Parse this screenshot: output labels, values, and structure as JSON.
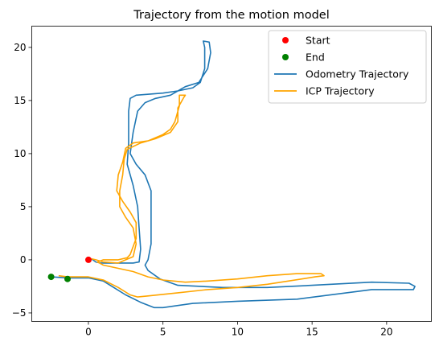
{
  "chart_data": {
    "type": "line",
    "title": "Trajectory from the motion model",
    "xlabel": "",
    "ylabel": "",
    "xlim": [
      -3.8,
      23.0
    ],
    "ylim": [
      -5.8,
      22.0
    ],
    "x_ticks": [
      0,
      5,
      10,
      15,
      20
    ],
    "y_ticks": [
      -5,
      0,
      5,
      10,
      15,
      20
    ],
    "grid": false,
    "legend_position": "top-right",
    "markers": [
      {
        "name": "Start",
        "color": "#ff0000",
        "points": [
          [
            0,
            0
          ]
        ]
      },
      {
        "name": "End",
        "color": "#008000",
        "points": [
          [
            -2.5,
            -1.6
          ],
          [
            -1.4,
            -1.8
          ]
        ]
      }
    ],
    "series": [
      {
        "name": "Odometry Trajectory",
        "color": "#1f77b4",
        "points": [
          [
            0.2,
            0.1
          ],
          [
            0.5,
            -0.2
          ],
          [
            0.8,
            -0.3
          ],
          [
            2.0,
            -0.3
          ],
          [
            3.0,
            -0.3
          ],
          [
            3.4,
            -0.2
          ],
          [
            3.5,
            1.0
          ],
          [
            3.4,
            3.0
          ],
          [
            3.3,
            5.0
          ],
          [
            3.0,
            7.0
          ],
          [
            2.6,
            9.0
          ],
          [
            2.7,
            11.0
          ],
          [
            2.7,
            12.5
          ],
          [
            2.7,
            14.0
          ],
          [
            2.8,
            15.2
          ],
          [
            3.2,
            15.5
          ],
          [
            5.0,
            15.7
          ],
          [
            6.0,
            15.9
          ],
          [
            7.0,
            16.2
          ],
          [
            7.5,
            16.7
          ],
          [
            7.8,
            18.0
          ],
          [
            7.8,
            20.0
          ],
          [
            7.7,
            20.6
          ],
          [
            8.1,
            20.5
          ],
          [
            8.2,
            19.5
          ],
          [
            8.0,
            18.0
          ],
          [
            7.4,
            16.7
          ],
          [
            6.5,
            16.3
          ],
          [
            5.5,
            15.5
          ],
          [
            4.5,
            15.2
          ],
          [
            3.8,
            14.8
          ],
          [
            3.3,
            14.0
          ],
          [
            3.0,
            12.0
          ],
          [
            2.8,
            10.0
          ],
          [
            3.2,
            9.0
          ],
          [
            3.8,
            8.0
          ],
          [
            4.2,
            6.5
          ],
          [
            4.2,
            4.0
          ],
          [
            4.2,
            1.5
          ],
          [
            4.0,
            0.0
          ],
          [
            3.8,
            -0.5
          ],
          [
            4.0,
            -1.0
          ],
          [
            4.8,
            -1.8
          ],
          [
            6.0,
            -2.4
          ],
          [
            9.0,
            -2.6
          ],
          [
            12.0,
            -2.6
          ],
          [
            15.0,
            -2.4
          ],
          [
            19.0,
            -2.1
          ],
          [
            21.5,
            -2.2
          ],
          [
            21.9,
            -2.5
          ],
          [
            21.8,
            -2.8
          ],
          [
            19.0,
            -2.8
          ],
          [
            14.0,
            -3.7
          ],
          [
            10.0,
            -3.9
          ],
          [
            7.0,
            -4.1
          ],
          [
            5.0,
            -4.5
          ],
          [
            4.4,
            -4.5
          ],
          [
            3.5,
            -4.0
          ],
          [
            2.5,
            -3.3
          ],
          [
            1.7,
            -2.6
          ],
          [
            1.0,
            -2.0
          ],
          [
            0.0,
            -1.7
          ],
          [
            -1.4,
            -1.7
          ],
          [
            -2.5,
            -1.6
          ]
        ]
      },
      {
        "name": "ICP Trajectory",
        "color": "#ffa500",
        "points": [
          [
            0.2,
            0.1
          ],
          [
            0.5,
            0.0
          ],
          [
            1.0,
            -0.2
          ],
          [
            2.0,
            -0.3
          ],
          [
            2.5,
            0.0
          ],
          [
            3.0,
            0.3
          ],
          [
            3.2,
            1.5
          ],
          [
            3.0,
            3.0
          ],
          [
            2.5,
            4.0
          ],
          [
            2.1,
            5.0
          ],
          [
            2.1,
            6.5
          ],
          [
            2.3,
            8.0
          ],
          [
            2.4,
            9.5
          ],
          [
            2.6,
            10.4
          ],
          [
            3.5,
            11.0
          ],
          [
            4.5,
            11.4
          ],
          [
            5.5,
            12.0
          ],
          [
            6.0,
            13.0
          ],
          [
            6.0,
            14.3
          ],
          [
            6.4,
            15.3
          ],
          [
            6.5,
            15.5
          ],
          [
            6.1,
            15.5
          ],
          [
            6.1,
            14.5
          ],
          [
            5.8,
            13.0
          ],
          [
            5.5,
            12.3
          ],
          [
            5.0,
            11.8
          ],
          [
            4.0,
            11.2
          ],
          [
            3.0,
            11.0
          ],
          [
            2.5,
            10.5
          ],
          [
            2.3,
            9.2
          ],
          [
            2.0,
            8.0
          ],
          [
            1.9,
            6.5
          ],
          [
            2.3,
            5.5
          ],
          [
            2.8,
            4.5
          ],
          [
            3.2,
            3.5
          ],
          [
            3.2,
            2.0
          ],
          [
            2.8,
            0.5
          ],
          [
            2.6,
            0.2
          ],
          [
            2.0,
            0.0
          ],
          [
            1.0,
            0.0
          ],
          [
            0.6,
            -0.2
          ],
          [
            1.0,
            -0.5
          ],
          [
            2.0,
            -0.8
          ],
          [
            3.0,
            -1.1
          ],
          [
            4.0,
            -1.6
          ],
          [
            5.0,
            -1.9
          ],
          [
            6.5,
            -2.1
          ],
          [
            8.0,
            -2.0
          ],
          [
            10.0,
            -1.8
          ],
          [
            12.0,
            -1.5
          ],
          [
            14.0,
            -1.3
          ],
          [
            15.6,
            -1.3
          ],
          [
            15.8,
            -1.5
          ],
          [
            15.2,
            -1.6
          ],
          [
            12.0,
            -2.3
          ],
          [
            10.0,
            -2.6
          ],
          [
            8.0,
            -2.8
          ],
          [
            6.0,
            -3.1
          ],
          [
            4.0,
            -3.4
          ],
          [
            3.3,
            -3.5
          ],
          [
            2.8,
            -3.3
          ],
          [
            2.0,
            -2.6
          ],
          [
            1.0,
            -1.9
          ],
          [
            0.0,
            -1.6
          ],
          [
            -1.4,
            -1.6
          ],
          [
            -2.0,
            -1.5
          ]
        ]
      }
    ]
  }
}
